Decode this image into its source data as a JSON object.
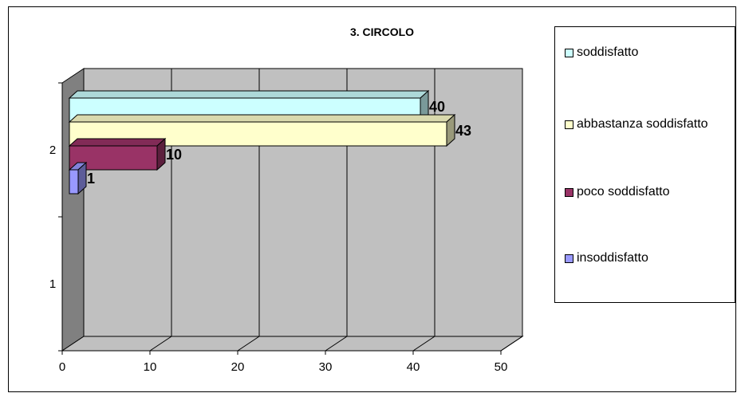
{
  "chart_data": {
    "type": "bar",
    "orientation": "horizontal",
    "three_d": true,
    "title": "3. CIRCOLO",
    "categories": [
      "1",
      "2"
    ],
    "series": [
      {
        "name": "soddisfatto",
        "values": [
          null,
          40
        ],
        "color": "#ccffff"
      },
      {
        "name": "abbastanza soddisfatto",
        "values": [
          null,
          43
        ],
        "color": "#ffffcc"
      },
      {
        "name": "poco soddisfatto",
        "values": [
          null,
          10
        ],
        "color": "#993366"
      },
      {
        "name": "insoddisfatto",
        "values": [
          null,
          1
        ],
        "color": "#9999ff"
      }
    ],
    "x_ticks": [
      "0",
      "10",
      "20",
      "30",
      "40",
      "50"
    ],
    "xlim": [
      0,
      50
    ],
    "grid": true,
    "legend_position": "right",
    "wall_color": "#c0c0c0",
    "side_wall_color": "#808080"
  }
}
